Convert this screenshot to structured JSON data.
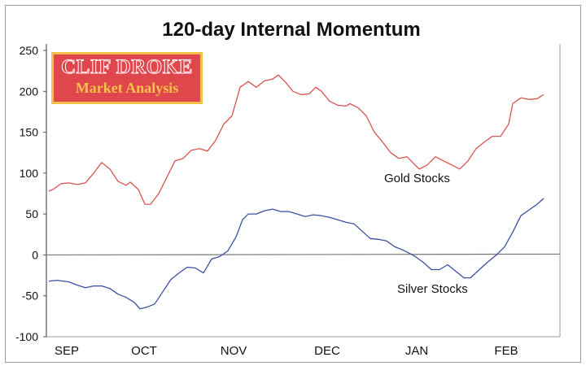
{
  "chart_data": {
    "type": "line",
    "title": "120-day Internal Momentum",
    "xlabel": "",
    "ylabel": "",
    "ylim": [
      -100,
      250
    ],
    "yticks": [
      250,
      200,
      150,
      100,
      50,
      0,
      -50,
      -100
    ],
    "xlim": [
      0,
      125
    ],
    "xticks": [
      {
        "label": "SEP",
        "x": 4
      },
      {
        "label": "OCT",
        "x": 23
      },
      {
        "label": "NOV",
        "x": 45
      },
      {
        "label": "DEC",
        "x": 68
      },
      {
        "label": "JAN",
        "x": 90
      },
      {
        "label": "FEB",
        "x": 112
      }
    ],
    "grid": false,
    "zero_line": true,
    "series": [
      {
        "name": "Gold Stocks",
        "color": "#d9534f",
        "x": [
          0,
          1,
          3,
          5,
          7,
          9,
          11,
          13,
          15,
          17,
          19,
          20,
          22,
          23.6,
          25,
          27,
          29,
          31,
          33,
          35,
          37,
          39,
          41,
          43,
          45,
          47,
          49,
          51,
          53,
          55,
          56.4,
          58,
          60,
          62,
          64,
          65.6,
          67,
          69,
          71,
          73,
          74,
          76,
          78,
          80,
          82,
          84,
          86,
          88,
          90,
          91,
          93,
          95,
          97,
          99,
          101,
          103,
          105,
          107,
          109,
          111,
          113,
          114,
          116,
          118,
          120,
          121.6
        ],
        "values": [
          78,
          80,
          87,
          88,
          86,
          88,
          100,
          113,
          105,
          90,
          85,
          89,
          80,
          62,
          62,
          75,
          95,
          115,
          118,
          128,
          130,
          127,
          140,
          160,
          170,
          205,
          212,
          205,
          213,
          215,
          220,
          212,
          200,
          196,
          197,
          205,
          200,
          188,
          183,
          182,
          185,
          180,
          170,
          150,
          138,
          125,
          118,
          120,
          110,
          105,
          110,
          120,
          115,
          110,
          105,
          115,
          130,
          138,
          145,
          145,
          160,
          185,
          192,
          190,
          191,
          196
        ]
      },
      {
        "name": "Silver Stocks",
        "color": "#3b4fa0",
        "x": [
          0,
          2,
          5,
          7,
          9,
          11,
          13,
          15,
          17,
          19,
          21,
          22.4,
          24,
          26,
          28,
          30,
          32,
          34,
          36,
          38,
          40,
          42,
          44,
          46,
          47.6,
          49,
          51,
          53,
          55,
          57,
          59,
          61,
          63,
          65,
          67,
          69,
          71,
          73,
          75,
          77,
          79,
          81,
          83,
          85,
          87,
          89,
          90,
          92,
          94,
          96,
          98,
          100,
          102,
          103.6,
          106,
          108,
          110,
          112,
          114,
          116,
          118,
          120,
          121.6
        ],
        "values": [
          -32,
          -31,
          -33,
          -37,
          -40,
          -38,
          -38,
          -41,
          -48,
          -52,
          -58,
          -66,
          -64,
          -60,
          -45,
          -30,
          -22,
          -15,
          -16,
          -22,
          -5,
          -2,
          5,
          22,
          43,
          50,
          50,
          54,
          56,
          53,
          53,
          50,
          47,
          49,
          48,
          46,
          43,
          40,
          38,
          29,
          20,
          19,
          17,
          10,
          6,
          1,
          -2,
          -9,
          -18,
          -18,
          -12,
          -20,
          -28,
          -28,
          -17,
          -8,
          0,
          10,
          28,
          48,
          55,
          62,
          69
        ]
      }
    ],
    "annotations": [
      "Gold Stocks",
      "Silver Stocks"
    ],
    "logo": {
      "line1": "CLIF DROKE",
      "line2": "Market Analysis"
    }
  }
}
